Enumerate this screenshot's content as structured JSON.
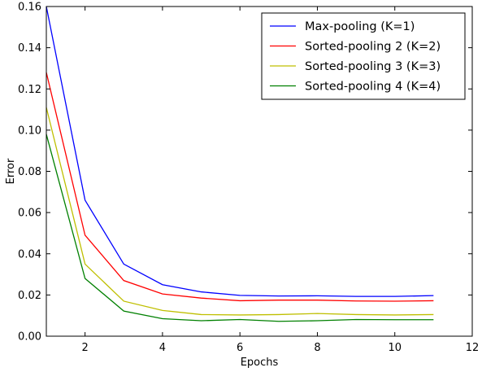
{
  "chart_data": {
    "type": "line",
    "title": "",
    "xlabel": "Epochs",
    "ylabel": "Error",
    "xlim": [
      1,
      12
    ],
    "ylim": [
      0.0,
      0.16
    ],
    "xticks": [
      2,
      4,
      6,
      8,
      10,
      12
    ],
    "yticks": [
      0.0,
      0.02,
      0.04,
      0.06,
      0.08,
      0.1,
      0.12,
      0.14,
      0.16
    ],
    "xtick_labels": [
      "2",
      "4",
      "6",
      "8",
      "10",
      "12"
    ],
    "ytick_labels": [
      "0.00",
      "0.02",
      "0.04",
      "0.06",
      "0.08",
      "0.10",
      "0.12",
      "0.14",
      "0.16"
    ],
    "grid": false,
    "legend_position": "top-right",
    "x": [
      1,
      2,
      3,
      4,
      5,
      6,
      7,
      8,
      9,
      10,
      11
    ],
    "series": [
      {
        "name": "Max-pooling (K=1)",
        "color": "#0000ff",
        "values": [
          0.16,
          0.066,
          0.035,
          0.025,
          0.0215,
          0.0198,
          0.0195,
          0.0196,
          0.0193,
          0.0193,
          0.0197
        ]
      },
      {
        "name": "Sorted-pooling 2 (K=2)",
        "color": "#ff0000",
        "values": [
          0.128,
          0.049,
          0.027,
          0.0205,
          0.0185,
          0.0172,
          0.0175,
          0.0175,
          0.0171,
          0.017,
          0.0172
        ]
      },
      {
        "name": "Sorted-pooling 3 (K=3)",
        "color": "#bfbf00",
        "values": [
          0.111,
          0.035,
          0.017,
          0.0125,
          0.0105,
          0.0103,
          0.0105,
          0.011,
          0.0105,
          0.0103,
          0.0105
        ]
      },
      {
        "name": "Sorted-pooling 4 (K=4)",
        "color": "#008000",
        "values": [
          0.098,
          0.028,
          0.0122,
          0.0085,
          0.0075,
          0.0081,
          0.0072,
          0.0075,
          0.0081,
          0.008,
          0.008
        ]
      }
    ]
  }
}
